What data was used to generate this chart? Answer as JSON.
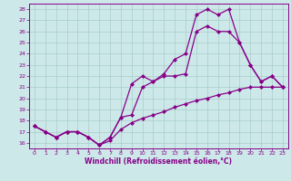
{
  "title": "",
  "xlabel": "Windchill (Refroidissement éolien,°C)",
  "xlim": [
    -0.5,
    23.5
  ],
  "ylim": [
    15.5,
    28.5
  ],
  "yticks": [
    16,
    17,
    18,
    19,
    20,
    21,
    22,
    23,
    24,
    25,
    26,
    27,
    28
  ],
  "xticks": [
    0,
    1,
    2,
    3,
    4,
    5,
    6,
    7,
    8,
    9,
    10,
    11,
    12,
    13,
    14,
    15,
    16,
    17,
    18,
    19,
    20,
    21,
    22,
    23
  ],
  "bg_color": "#cce8e8",
  "grid_color": "#aacccc",
  "line_color": "#880088",
  "series": [
    {
      "x": [
        0,
        1,
        2,
        3,
        4,
        5,
        6,
        7,
        8,
        9,
        10,
        11,
        12,
        13,
        14,
        15,
        16,
        17,
        18,
        19,
        20,
        21,
        22,
        23
      ],
      "y": [
        17.5,
        17.0,
        16.5,
        17.0,
        17.0,
        16.5,
        15.8,
        16.2,
        17.2,
        17.8,
        18.2,
        18.5,
        18.8,
        19.2,
        19.5,
        19.8,
        20.0,
        20.3,
        20.5,
        20.8,
        21.0,
        21.0,
        21.0,
        21.0
      ],
      "marker": "D",
      "markersize": 2.0,
      "linewidth": 0.9
    },
    {
      "x": [
        0,
        1,
        2,
        3,
        4,
        5,
        6,
        7,
        8,
        9,
        10,
        11,
        12,
        13,
        14,
        15,
        16,
        17,
        18,
        19,
        20,
        21,
        22,
        23
      ],
      "y": [
        17.5,
        17.0,
        16.5,
        17.0,
        17.0,
        16.5,
        15.8,
        16.5,
        18.3,
        21.3,
        22.0,
        21.5,
        22.0,
        22.0,
        22.2,
        26.0,
        26.5,
        26.0,
        26.0,
        25.0,
        23.0,
        21.5,
        22.0,
        21.0
      ],
      "marker": "D",
      "markersize": 2.0,
      "linewidth": 0.9
    },
    {
      "x": [
        0,
        1,
        2,
        3,
        4,
        5,
        6,
        7,
        8,
        9,
        10,
        11,
        12,
        13,
        14,
        15,
        16,
        17,
        18,
        19,
        20,
        21,
        22,
        23
      ],
      "y": [
        17.5,
        17.0,
        16.5,
        17.0,
        17.0,
        16.5,
        15.8,
        16.5,
        18.3,
        18.5,
        21.0,
        21.5,
        22.2,
        23.5,
        24.0,
        27.5,
        28.0,
        27.5,
        28.0,
        25.0,
        23.0,
        21.5,
        22.0,
        21.0
      ],
      "marker": "D",
      "markersize": 2.0,
      "linewidth": 0.9
    }
  ]
}
